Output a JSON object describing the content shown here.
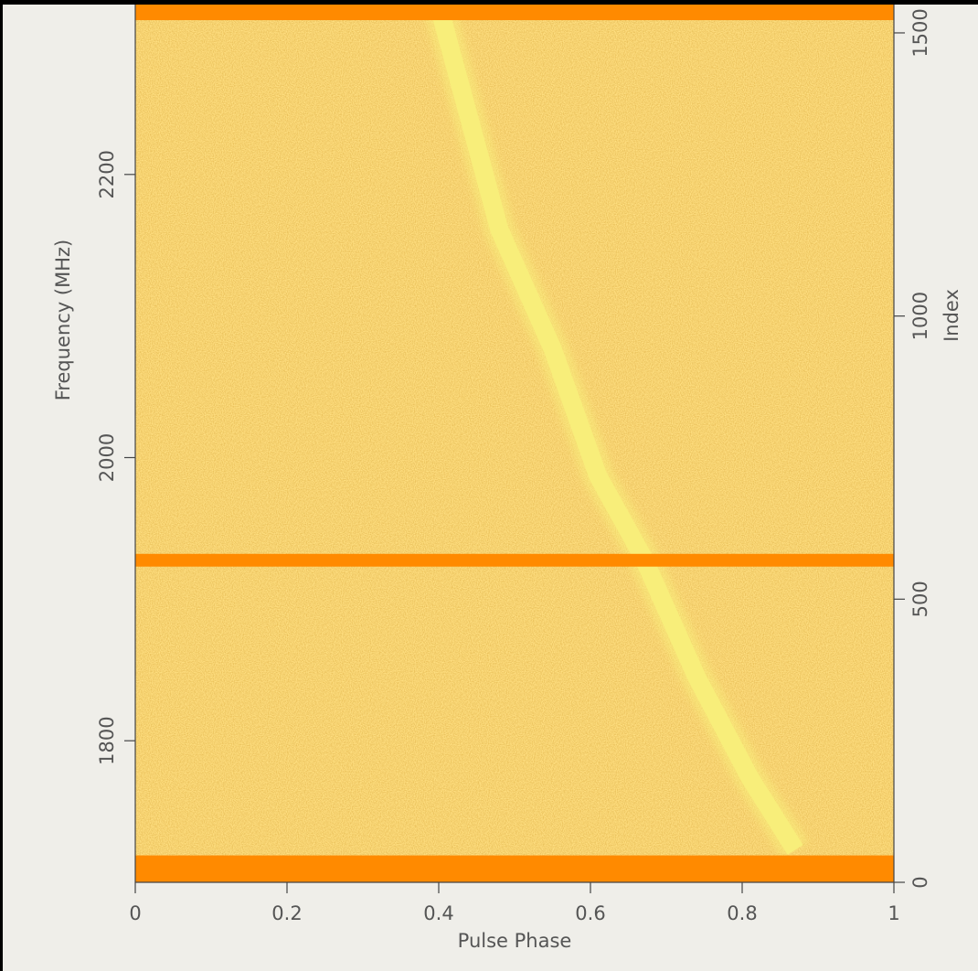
{
  "chart_data": {
    "type": "heatmap",
    "x_label": "Pulse Phase",
    "y_label": "Frequency (MHz)",
    "y2_label": "Index",
    "xlim": [
      0,
      1
    ],
    "xticks": [
      0,
      0.2,
      0.4,
      0.6,
      0.8,
      1
    ],
    "ylim": [
      1700,
      2320
    ],
    "yticks": [
      1800,
      2000,
      2200
    ],
    "y2lim": [
      0,
      1550
    ],
    "y2ticks": [
      0,
      500,
      1000,
      1500
    ],
    "background_color": "#e8982e",
    "track_color": "#f8ee7a",
    "mask_color": "#ff8a00",
    "pulse_track": {
      "phase": [
        0.4,
        0.48,
        0.55,
        0.61,
        0.67,
        0.74,
        0.81,
        0.87
      ],
      "frequency": [
        2319,
        2161,
        2077,
        1987,
        1929,
        1845,
        1774,
        1723
      ]
    },
    "masked_frequency_ranges": [
      [
        1700,
        1719
      ],
      [
        1923,
        1932
      ],
      [
        2309,
        2320
      ]
    ]
  }
}
